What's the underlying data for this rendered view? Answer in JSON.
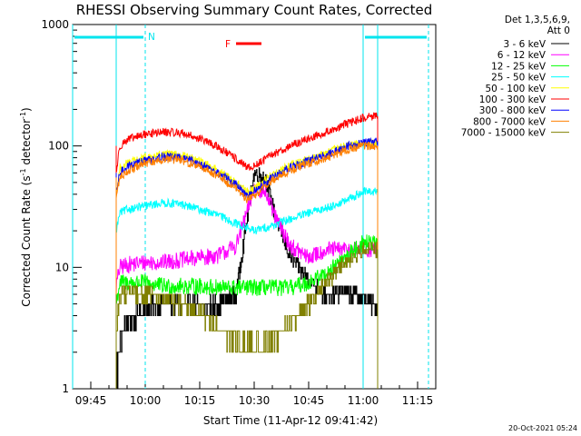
{
  "chart_data": {
    "type": "line",
    "title": "RHESSI Observing Summary Count Rates, Corrected",
    "xlabel": "Start Time (11-Apr-12 09:41:42)",
    "ylabel_main": "Corrected Count Rate (s",
    "ylabel_sup1": "-1",
    "ylabel_mid": " detector",
    "ylabel_sup2": "-1",
    "ylabel_end": ")",
    "y_scale": "log",
    "ylim": [
      1,
      1000
    ],
    "xlim": [
      "09:40",
      "11:20"
    ],
    "x_ticks": [
      "09:45",
      "10:00",
      "10:15",
      "10:30",
      "10:45",
      "11:00",
      "11:15"
    ],
    "y_ticks": [
      "1",
      "10",
      "100",
      "1000"
    ],
    "legend_header": [
      "Det 1,3,5,6,9,",
      "Att 0"
    ],
    "series": [
      {
        "name": "3 - 6 keV",
        "color": "#000000",
        "x": [
          "09:52",
          "09:53",
          "09:55",
          "10:00",
          "10:05",
          "10:10",
          "10:15",
          "10:20",
          "10:25",
          "10:28",
          "10:30",
          "10:33",
          "10:36",
          "10:40",
          "10:45",
          "10:50",
          "10:55",
          "11:00",
          "11:02",
          "11:04"
        ],
        "y": [
          1.2,
          2.5,
          3.5,
          4.5,
          5.2,
          5.0,
          4.8,
          5.0,
          6.0,
          25,
          60,
          55,
          25,
          12,
          8,
          5.5,
          6.5,
          5.5,
          5.0,
          5.0
        ]
      },
      {
        "name": "6 - 12 keV",
        "color": "#ff00ff",
        "x": [
          "09:52",
          "09:53",
          "09:55",
          "10:00",
          "10:05",
          "10:10",
          "10:15",
          "10:20",
          "10:25",
          "10:28",
          "10:30",
          "10:33",
          "10:36",
          "10:40",
          "10:45",
          "10:50",
          "10:55",
          "11:00",
          "11:02",
          "11:04"
        ],
        "y": [
          7,
          10,
          10.5,
          11,
          11,
          11.5,
          12,
          12.5,
          15,
          28,
          45,
          42,
          25,
          15,
          12,
          14,
          14,
          14,
          14,
          14
        ]
      },
      {
        "name": "12 - 25 keV",
        "color": "#00ff00",
        "x": [
          "09:52",
          "09:53",
          "09:55",
          "10:00",
          "10:05",
          "10:10",
          "10:15",
          "10:20",
          "10:25",
          "10:30",
          "10:35",
          "10:40",
          "10:45",
          "10:50",
          "10:55",
          "11:00",
          "11:02",
          "11:04"
        ],
        "y": [
          5,
          7.5,
          7.5,
          7.5,
          7.0,
          7.0,
          7.0,
          6.8,
          6.8,
          6.8,
          6.8,
          6.8,
          7.5,
          9.0,
          12,
          16,
          16,
          15
        ]
      },
      {
        "name": "25 - 50 keV",
        "color": "#00ffff",
        "x": [
          "09:52",
          "09:53",
          "09:55",
          "10:00",
          "10:05",
          "10:10",
          "10:15",
          "10:20",
          "10:25",
          "10:30",
          "10:35",
          "10:40",
          "10:45",
          "10:50",
          "10:55",
          "11:00",
          "11:02",
          "11:04"
        ],
        "y": [
          20,
          28,
          30,
          32,
          34,
          33,
          30,
          27,
          23,
          20,
          22,
          25,
          28,
          31,
          35,
          42,
          42,
          42
        ]
      },
      {
        "name": "50 - 100 keV",
        "color": "#ffff00",
        "x": [
          "09:52",
          "09:53",
          "09:55",
          "10:00",
          "10:05",
          "10:10",
          "10:15",
          "10:20",
          "10:25",
          "10:28",
          "10:30",
          "10:35",
          "10:40",
          "10:45",
          "10:50",
          "10:55",
          "11:00",
          "11:02",
          "11:04"
        ],
        "y": [
          40,
          65,
          72,
          80,
          85,
          84,
          75,
          63,
          50,
          42,
          45,
          58,
          70,
          78,
          88,
          100,
          105,
          105,
          105
        ]
      },
      {
        "name": "100 - 300 keV",
        "color": "#ff0000",
        "x": [
          "09:52",
          "09:53",
          "09:55",
          "10:00",
          "10:05",
          "10:10",
          "10:15",
          "10:20",
          "10:25",
          "10:28",
          "10:30",
          "10:35",
          "10:40",
          "10:45",
          "10:50",
          "10:55",
          "11:00",
          "11:02",
          "11:04"
        ],
        "y": [
          60,
          100,
          112,
          125,
          130,
          128,
          115,
          98,
          78,
          66,
          68,
          85,
          100,
          115,
          130,
          150,
          170,
          175,
          175
        ]
      },
      {
        "name": "300 - 800 keV",
        "color": "#0000ff",
        "x": [
          "09:52",
          "09:53",
          "09:55",
          "10:00",
          "10:05",
          "10:10",
          "10:15",
          "10:20",
          "10:25",
          "10:28",
          "10:30",
          "10:35",
          "10:40",
          "10:45",
          "10:50",
          "10:55",
          "11:00",
          "11:02",
          "11:04"
        ],
        "y": [
          40,
          60,
          68,
          76,
          82,
          80,
          72,
          60,
          48,
          38,
          42,
          55,
          66,
          75,
          85,
          98,
          108,
          108,
          108
        ]
      },
      {
        "name": "800 - 7000 keV",
        "color": "#ff8000",
        "x": [
          "09:52",
          "09:53",
          "09:55",
          "10:00",
          "10:05",
          "10:10",
          "10:15",
          "10:20",
          "10:25",
          "10:28",
          "10:30",
          "10:35",
          "10:40",
          "10:45",
          "10:50",
          "10:55",
          "11:00",
          "11:02",
          "11:04"
        ],
        "y": [
          38,
          55,
          62,
          72,
          78,
          76,
          68,
          57,
          45,
          36,
          39,
          52,
          63,
          72,
          80,
          92,
          100,
          100,
          100
        ]
      },
      {
        "name": "7000 - 15000 keV",
        "color": "#808000",
        "x": [
          "09:52",
          "09:53",
          "09:55",
          "10:00",
          "10:05",
          "10:10",
          "10:15",
          "10:20",
          "10:25",
          "10:30",
          "10:35",
          "10:40",
          "10:45",
          "10:50",
          "10:55",
          "11:00",
          "11:02",
          "11:04"
        ],
        "y": [
          3,
          6,
          6.5,
          6.0,
          5.5,
          5.0,
          4.2,
          3.2,
          2.4,
          2.2,
          2.6,
          3.5,
          5.0,
          7.5,
          11,
          14,
          14,
          14
        ]
      }
    ],
    "markers": {
      "n_label": "N",
      "f_label": "F",
      "night": [
        [
          "09:40",
          "10:00"
        ],
        [
          "11:00",
          "11:18"
        ]
      ],
      "flare": [
        "10:25",
        "10:32"
      ],
      "vlines_solid": [
        "09:40",
        "11:00"
      ],
      "vlines_dashed": [
        "10:00",
        "11:18"
      ],
      "data_gap_edges": [
        "09:52",
        "11:04"
      ]
    },
    "footer_date": "20-Oct-2021 05:24"
  }
}
